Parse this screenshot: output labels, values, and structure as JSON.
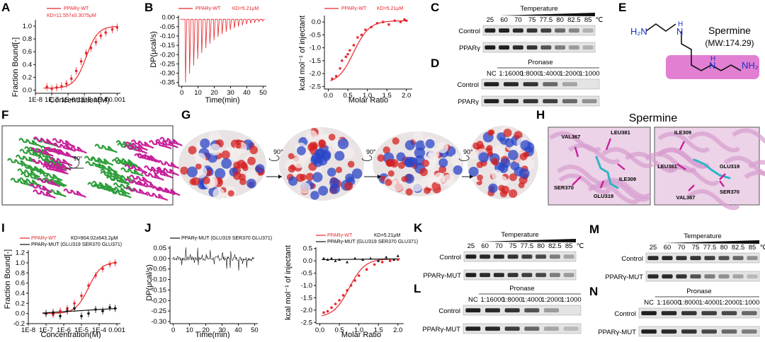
{
  "panels": {
    "A": "A",
    "B": "B",
    "C": "C",
    "D": "D",
    "E": "E",
    "F": "F",
    "G": "G",
    "H": "H",
    "I": "I",
    "J": "J",
    "K": "K",
    "L": "L",
    "M": "M",
    "N": "N"
  },
  "colors": {
    "red": "#e8262c",
    "black": "#111111",
    "green": "#2e9e3a",
    "magenta": "#c8209a",
    "molbox": "#e27fd3",
    "blue": "#1f2fbf"
  },
  "panelA": {
    "legend": "PPARγ-WT",
    "kd": "KD=11.557±0.3075μM",
    "ylabel": "Fraction Bound[-]",
    "xlabel": "Concentration(M)",
    "yticks": [
      "0.0",
      "0.2",
      "0.4",
      "0.6",
      "0.8",
      "1.0"
    ],
    "xticks": [
      "1E-8",
      "1E-7",
      "1E-6",
      "1E-5",
      "1E-4",
      "0.001"
    ]
  },
  "panelB1": {
    "legend": "PPARγ-WT",
    "kd": "KD=5.21μM",
    "ylabel": "DP(μcal/s)",
    "xlabel": "Time(min)",
    "yticks": [
      "0.00",
      "-0.05",
      "-0.10",
      "-0.15",
      "-0.20",
      "-0.25",
      "-0.30",
      "-0.35"
    ],
    "xticks": [
      "0",
      "10",
      "20",
      "30",
      "40",
      "50"
    ]
  },
  "panelB2": {
    "legend": "PPARγ-WT",
    "kd": "KD=5.21μM",
    "ylabel": "kcal mol⁻¹ of injectant",
    "xlabel": "Molar Ratio",
    "yticks": [
      "0.0",
      "-0.5",
      "-1.0",
      "-1.5",
      "-2.0",
      "-2.5"
    ],
    "xticks": [
      "0.0",
      "0.5",
      "1.0",
      "1.5",
      "2.0"
    ]
  },
  "panelC": {
    "header": "Temperature",
    "lanes": [
      "25",
      "60",
      "70",
      "75",
      "77.5",
      "80",
      "82.5",
      "85",
      "℃"
    ],
    "rows": [
      "Control",
      "PPARγ"
    ]
  },
  "panelD": {
    "header": "Pronase",
    "lanes": [
      "NC",
      "1:16000",
      "1:8000",
      "1:4000",
      "1:2000",
      "1:1000"
    ],
    "rows": [
      "Control",
      "PPARγ"
    ]
  },
  "panelE": {
    "name": "Spermine",
    "mw": "(MW:174.29)",
    "h2n": "H₂N",
    "nh": "N",
    "h": "H",
    "nh2": "NH₂"
  },
  "panelG": {
    "rot1": "90°",
    "rot2": "90°",
    "rot3": "90°"
  },
  "panelF": {
    "rot": "90°"
  },
  "panelH": {
    "title": "Spermine",
    "left": [
      "VAL367",
      "LEU381",
      "ILE309",
      "SER370",
      "GLU319"
    ],
    "right": [
      "ILE309",
      "LEU381",
      "GLU319",
      "SER370",
      "VAL367"
    ]
  },
  "panelI": {
    "legend1": "PPARγ-WT",
    "kd1": "KD=904.02±643.2μM",
    "legend2": "PPARγ-MUT (GLU319 SER370 GLU371)",
    "ylabel": "Fraction Bound[-]",
    "xlabel": "Concentration(M)",
    "yticks": [
      "-0.2",
      "0.0",
      "0.2",
      "0.4",
      "0.6",
      "0.8",
      "1.0",
      "1.2"
    ],
    "xticks": [
      "1E-8",
      "1E-7",
      "1E-6",
      "1E-5",
      "1E-4",
      "0.001"
    ]
  },
  "panelJ1": {
    "legend": "PPARγ-MUT (GLU319 SER370 GLU371)",
    "ylabel": "DP(μcal/s)",
    "xlabel": "Time(min)",
    "yticks": [
      "0.05",
      "0.00",
      "-0.05",
      "-0.10",
      "-0.15",
      "-0.20",
      "-0.25",
      "-0.30"
    ],
    "xticks": [
      "0",
      "10",
      "20",
      "30",
      "40",
      "50"
    ]
  },
  "panelJ2": {
    "legend1": "PPARγ-WT",
    "kd": "KD=5.21μM",
    "legend2": "PPARγ-MUT (GLU319 SER370 GLU371)",
    "ylabel": "kcal mol⁻¹ of injectant",
    "xlabel": "Molar Ratio",
    "yticks": [
      "0.5",
      "0.0",
      "-0.5",
      "-1.0",
      "-1.5",
      "-2.0",
      "-2.5"
    ],
    "xticks": [
      "0.0",
      "0.5",
      "1.0",
      "1.5",
      "2.0"
    ]
  },
  "panelK": {
    "header": "Temperature",
    "lanes": [
      "25",
      "60",
      "70",
      "75",
      "77.5",
      "80",
      "82.5",
      "85",
      "℃"
    ],
    "rows": [
      "Control",
      "PPARγ-MUT"
    ]
  },
  "panelL": {
    "header": "Pronase",
    "lanes": [
      "NC",
      "1:16000",
      "1:8000",
      "1:4000",
      "1:2000",
      "1:1000"
    ],
    "rows": [
      "Control",
      "PPARγ-MUT"
    ]
  },
  "panelM": {
    "header": "Temperature",
    "lanes": [
      "25",
      "60",
      "70",
      "75",
      "77.5",
      "80",
      "82.5",
      "85",
      "℃"
    ],
    "rows": [
      "Control",
      "PPARγ-MUT"
    ]
  },
  "panelN": {
    "header": "Pronase",
    "lanes": [
      "NC",
      "1:16000",
      "1:8000",
      "1:4000",
      "1:2000",
      "1:1000"
    ],
    "rows": [
      "Control",
      "PPARγ-MUT"
    ]
  },
  "chart_data": [
    {
      "id": "A",
      "type": "scatter",
      "x_log10": [
        -7.3,
        -7,
        -6.7,
        -6.4,
        -6.1,
        -5.8,
        -5.5,
        -5.2,
        -4.9,
        -4.6,
        -4.3,
        -4,
        -3.7,
        -3.3,
        -3
      ],
      "values": [
        0.05,
        0.02,
        0.04,
        0.06,
        0.1,
        0.18,
        0.3,
        0.45,
        0.58,
        0.66,
        0.75,
        0.85,
        0.9,
        0.95,
        0.98
      ],
      "ylim": [
        -0.05,
        1.1
      ]
    },
    {
      "id": "B2",
      "type": "scatter",
      "x": [
        0.1,
        0.2,
        0.3,
        0.35,
        0.45,
        0.5,
        0.55,
        0.65,
        0.75,
        0.85,
        0.95,
        1.1,
        1.25,
        1.4,
        1.55,
        1.7,
        1.85,
        1.95,
        2.0
      ],
      "values": [
        -2.2,
        -2.1,
        -1.8,
        -1.5,
        -1.35,
        -1.25,
        -1.1,
        -0.9,
        -0.6,
        -0.5,
        -0.3,
        -0.2,
        -0.05,
        0.0,
        -0.1,
        0.05,
        0.0,
        0.1,
        0.05
      ],
      "ylim": [
        -2.6,
        0.2
      ]
    },
    {
      "id": "I",
      "type": "scatter",
      "series": [
        {
          "name": "PPARγ-WT",
          "x_log10": [
            -7,
            -6.6,
            -6.2,
            -5.8,
            -5.4,
            -5,
            -4.6,
            -4.2,
            -3.8,
            -3.4,
            -3.1
          ],
          "values": [
            0.0,
            -0.02,
            0.05,
            0.1,
            0.2,
            0.35,
            0.55,
            0.75,
            0.88,
            0.97,
            1.0
          ]
        },
        {
          "name": "PPARγ-MUT (GLU319 SER370 GLU371)",
          "x_log10": [
            -7,
            -6.6,
            -6.2,
            -5.8,
            -5.4,
            -5,
            -4.6,
            -4.2,
            -3.8,
            -3.4,
            -3.1
          ],
          "values": [
            0.0,
            0.02,
            -0.05,
            0.05,
            0.1,
            -0.05,
            0.0,
            0.08,
            0.05,
            0.12,
            0.1
          ]
        }
      ],
      "ylim": [
        -0.2,
        1.2
      ]
    },
    {
      "id": "J2",
      "type": "scatter",
      "series": [
        {
          "name": "PPARγ-WT",
          "x": [
            0.1,
            0.2,
            0.3,
            0.4,
            0.5,
            0.6,
            0.7,
            0.8,
            0.9,
            1.0,
            1.2,
            1.4,
            1.6,
            1.8,
            2.0
          ],
          "values": [
            -2.1,
            -2.05,
            -1.9,
            -1.75,
            -1.6,
            -1.4,
            -1.2,
            -1.0,
            -0.8,
            -0.6,
            -0.35,
            -0.15,
            -0.05,
            0.0,
            0.05
          ]
        },
        {
          "name": "PPARγ-MUT (GLU319 SER370 GLU371)",
          "x": [
            0.1,
            0.2,
            0.3,
            0.4,
            0.5,
            0.7,
            0.9,
            1.1,
            1.3,
            1.5,
            1.7,
            1.9,
            2.0
          ],
          "values": [
            0.1,
            0.05,
            0.1,
            0.0,
            0.05,
            -0.05,
            0.1,
            0.05,
            0.1,
            0.0,
            0.15,
            0.05,
            0.2
          ]
        }
      ],
      "ylim": [
        -2.5,
        0.5
      ]
    }
  ]
}
